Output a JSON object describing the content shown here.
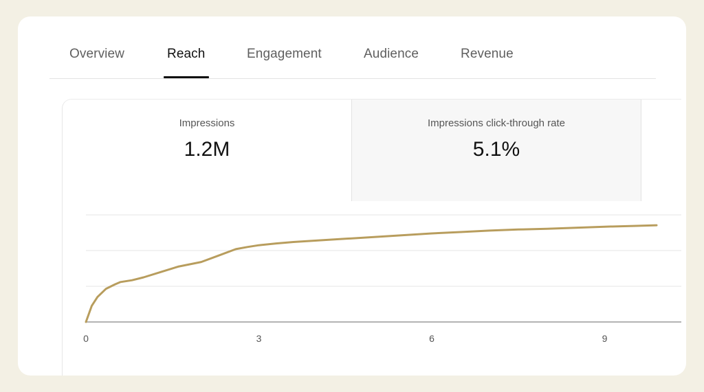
{
  "tabs": [
    {
      "label": "Overview",
      "active": false
    },
    {
      "label": "Reach",
      "active": true
    },
    {
      "label": "Engagement",
      "active": false
    },
    {
      "label": "Audience",
      "active": false
    },
    {
      "label": "Revenue",
      "active": false
    }
  ],
  "metrics": [
    {
      "label": "Impressions",
      "value": "1.2M",
      "selected": true
    },
    {
      "label": "Impressions click-through rate",
      "value": "5.1%",
      "selected": false
    }
  ],
  "colors": {
    "line": "#b89d5d",
    "background": "#f3f0e4",
    "card": "#ffffff"
  },
  "chart_data": {
    "type": "line",
    "title": "",
    "xlabel": "",
    "ylabel": "",
    "x_ticks": [
      "0",
      "3",
      "6",
      "9"
    ],
    "xlim": [
      0,
      9.9
    ],
    "ylim": [
      0,
      3
    ],
    "grid": true,
    "series": [
      {
        "x": [
          0,
          0.1,
          0.2,
          0.35,
          0.5,
          0.6,
          0.8,
          1.0,
          1.3,
          1.6,
          2.0,
          2.3,
          2.6,
          2.8,
          3.0,
          3.3,
          3.6,
          4.0,
          4.5,
          5.0,
          5.5,
          6.0,
          6.5,
          7.0,
          7.5,
          8.0,
          8.5,
          9.0,
          9.5,
          9.9
        ],
        "y": [
          0,
          0.45,
          0.7,
          0.93,
          1.05,
          1.12,
          1.17,
          1.25,
          1.4,
          1.55,
          1.68,
          1.86,
          2.04,
          2.1,
          2.15,
          2.2,
          2.24,
          2.28,
          2.33,
          2.38,
          2.43,
          2.48,
          2.52,
          2.56,
          2.59,
          2.61,
          2.64,
          2.67,
          2.69,
          2.71
        ]
      }
    ]
  }
}
